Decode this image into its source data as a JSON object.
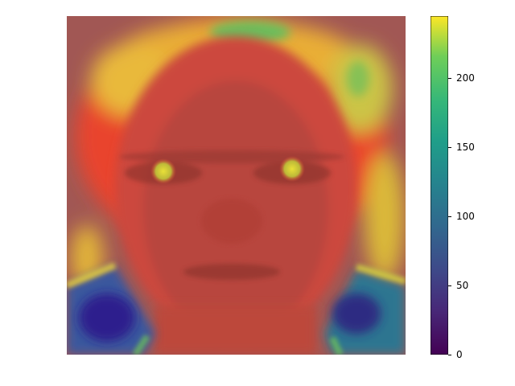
{
  "image": {
    "description_icon": "face-heatmap-overlay"
  },
  "colorbar": {
    "colormap": [
      "#440154",
      "#3b528b",
      "#21918c",
      "#5ec962",
      "#fde725"
    ],
    "min": 0,
    "max": 245,
    "ticks": [
      {
        "value": 0,
        "label": "0"
      },
      {
        "value": 50,
        "label": "50"
      },
      {
        "value": 100,
        "label": "100"
      },
      {
        "value": 150,
        "label": "150"
      },
      {
        "value": 200,
        "label": "200"
      }
    ]
  }
}
